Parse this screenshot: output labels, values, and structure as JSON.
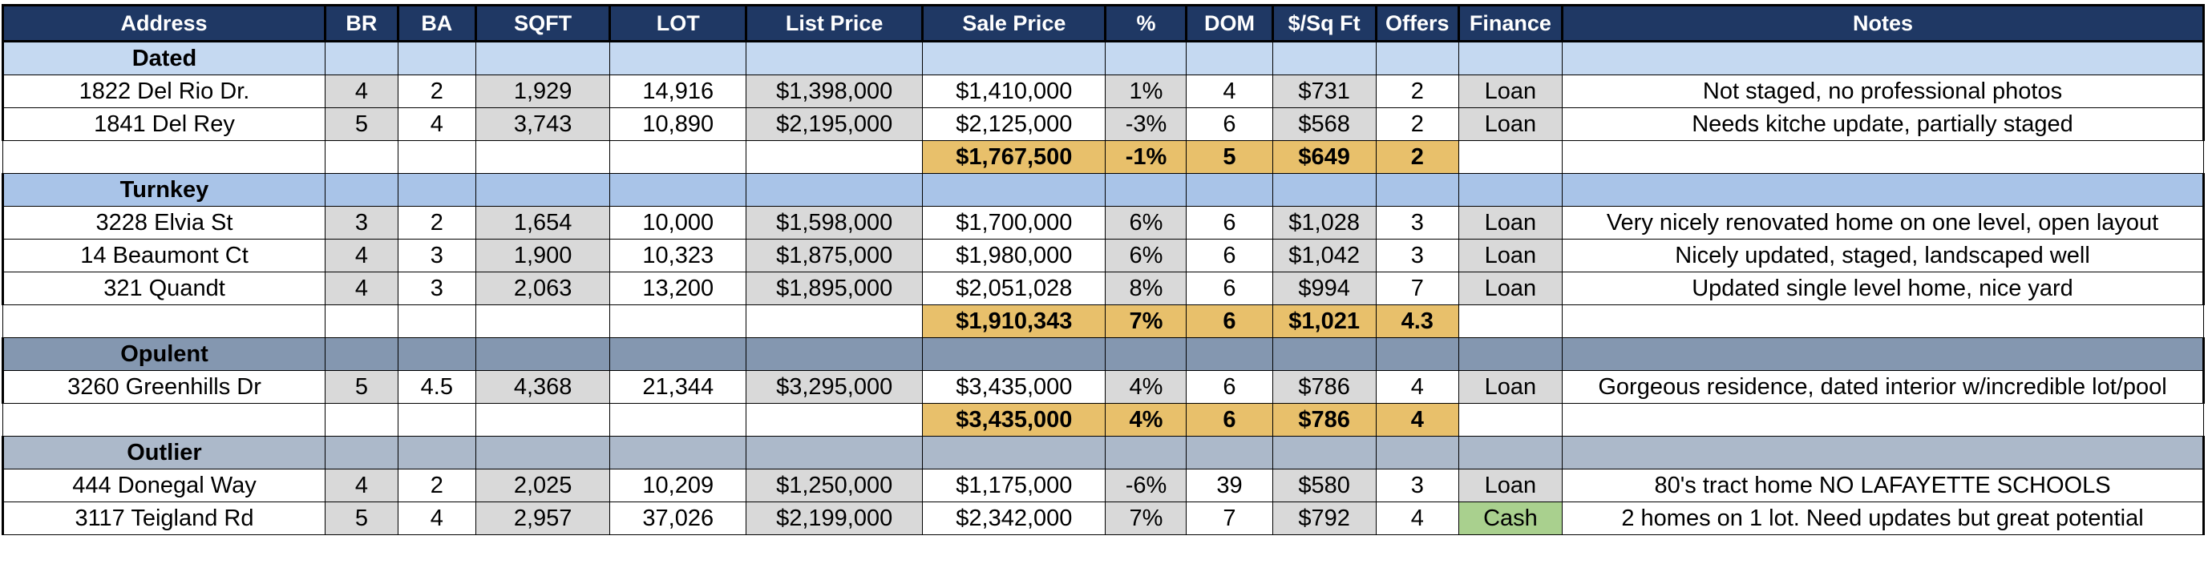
{
  "headers": [
    "Address",
    "BR",
    "BA",
    "SQFT",
    "LOT",
    "List Price",
    "Sale Price",
    "%",
    "DOM",
    "$/Sq Ft",
    "Offers",
    "Finance",
    "Notes"
  ],
  "sections": [
    {
      "title": "Dated",
      "rows": [
        {
          "address": "1822 Del Rio Dr.",
          "br": "4",
          "ba": "2",
          "sqft": "1,929",
          "lot": "14,916",
          "list": "$1,398,000",
          "sale": "$1,410,000",
          "pct": "1%",
          "dom": "4",
          "ppsf": "$731",
          "offers": "2",
          "finance": "Loan",
          "notes": "Not staged, no professional photos"
        },
        {
          "address": "1841 Del Rey",
          "br": "5",
          "ba": "4",
          "sqft": "3,743",
          "lot": "10,890",
          "list": "$2,195,000",
          "sale": "$2,125,000",
          "pct": "-3%",
          "dom": "6",
          "ppsf": "$568",
          "offers": "2",
          "finance": "Loan",
          "notes": "Needs kitche update, partially staged"
        }
      ],
      "summary": {
        "sale": "$1,767,500",
        "pct": "-1%",
        "dom": "5",
        "ppsf": "$649",
        "offers": "2"
      }
    },
    {
      "title": "Turnkey",
      "rows": [
        {
          "address": "3228 Elvia St",
          "br": "3",
          "ba": "2",
          "sqft": "1,654",
          "lot": "10,000",
          "list": "$1,598,000",
          "sale": "$1,700,000",
          "pct": "6%",
          "dom": "6",
          "ppsf": "$1,028",
          "offers": "3",
          "finance": "Loan",
          "notes": "Very nicely renovated home on one level, open layout"
        },
        {
          "address": "14 Beaumont Ct",
          "br": "4",
          "ba": "3",
          "sqft": "1,900",
          "lot": "10,323",
          "list": "$1,875,000",
          "sale": "$1,980,000",
          "pct": "6%",
          "dom": "6",
          "ppsf": "$1,042",
          "offers": "3",
          "finance": "Loan",
          "notes": "Nicely updated, staged, landscaped well"
        },
        {
          "address": "321 Quandt",
          "br": "4",
          "ba": "3",
          "sqft": "2,063",
          "lot": "13,200",
          "list": "$1,895,000",
          "sale": "$2,051,028",
          "pct": "8%",
          "dom": "6",
          "ppsf": "$994",
          "offers": "7",
          "finance": "Loan",
          "notes": "Updated single level home, nice yard"
        }
      ],
      "summary": {
        "sale": "$1,910,343",
        "pct": "7%",
        "dom": "6",
        "ppsf": "$1,021",
        "offers": "4.3"
      }
    },
    {
      "title": "Opulent",
      "rows": [
        {
          "address": "3260 Greenhills Dr",
          "br": "5",
          "ba": "4.5",
          "sqft": "4,368",
          "lot": "21,344",
          "list": "$3,295,000",
          "sale": "$3,435,000",
          "pct": "4%",
          "dom": "6",
          "ppsf": "$786",
          "offers": "4",
          "finance": "Loan",
          "notes": "Gorgeous residence, dated interior w/incredible lot/pool"
        }
      ],
      "summary": {
        "sale": "$3,435,000",
        "pct": "4%",
        "dom": "6",
        "ppsf": "$786",
        "offers": "4"
      }
    },
    {
      "title": "Outlier",
      "rows": [
        {
          "address": "444 Donegal Way",
          "br": "4",
          "ba": "2",
          "sqft": "2,025",
          "lot": "10,209",
          "list": "$1,250,000",
          "sale": "$1,175,000",
          "pct": "-6%",
          "dom": "39",
          "ppsf": "$580",
          "offers": "3",
          "finance": "Loan",
          "notes": "80's tract home NO LAFAYETTE SCHOOLS"
        },
        {
          "address": "3117 Teigland Rd",
          "br": "5",
          "ba": "4",
          "sqft": "2,957",
          "lot": "37,026",
          "list": "$2,199,000",
          "sale": "$2,342,000",
          "pct": "7%",
          "dom": "7",
          "ppsf": "$792",
          "offers": "4",
          "finance": "Cash",
          "notes": "2 homes on 1 lot. Need updates but great potential"
        }
      ]
    }
  ],
  "colors": {
    "header_bg": "#1f3864",
    "dated_bg": "#c5d9f1",
    "turnkey_bg": "#a9c4e8",
    "opulent_bg": "#8497b0",
    "outlier_bg": "#acb9ca",
    "gray_cell": "#d9d9d9",
    "summary_bg": "#e8c06b",
    "cash_bg": "#a9d08e"
  }
}
